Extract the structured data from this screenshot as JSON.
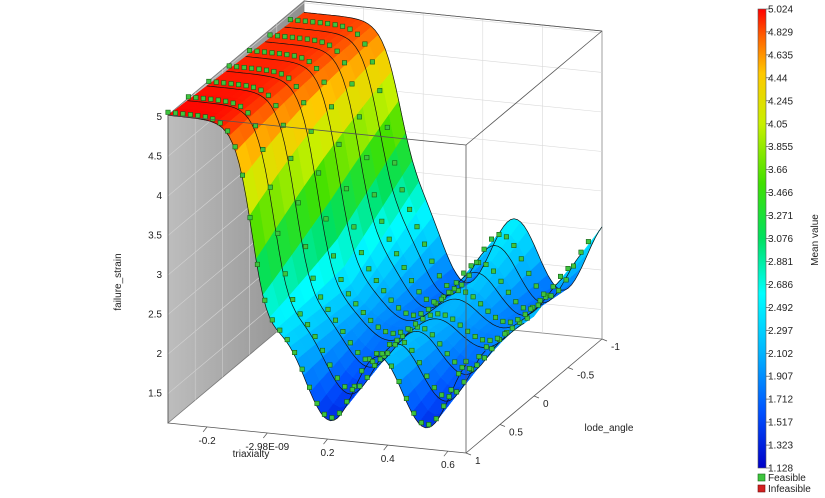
{
  "chart_data": {
    "type": "surface-3d",
    "zlabel": "failure_strain",
    "xlabel": "triaxialty",
    "ylabel": "lode_angle",
    "colorbar_label": "Mean value",
    "z_ticks": [
      "1.5",
      "2",
      "2.5",
      "3",
      "3.5",
      "4",
      "4.5",
      "5"
    ],
    "x_ticks": [
      "-0.2",
      "-2.98E-09",
      "0.2",
      "0.4",
      "0.6"
    ],
    "y_ticks": [
      "1",
      "0.5",
      "0",
      "-0.5",
      "-1"
    ],
    "colorbar_values": [
      "5.024",
      "4.829",
      "4.635",
      "4.44",
      "4.245",
      "4.05",
      "3.855",
      "3.66",
      "3.466",
      "3.271",
      "3.076",
      "2.881",
      "2.686",
      "2.492",
      "2.297",
      "2.102",
      "1.907",
      "1.712",
      "1.517",
      "1.323",
      "1.128"
    ],
    "colorbar_min": 1.128,
    "colorbar_max": 5.024,
    "xlim": [
      -0.33,
      0.66
    ],
    "ylim": [
      -1,
      1
    ],
    "zlim": [
      1.128,
      5.024
    ],
    "legend": [
      {
        "label": "Feasible",
        "color": "#3ec43e"
      },
      {
        "label": "Infeasible",
        "color": "#d42020"
      }
    ],
    "colors": {
      "surface_low": "#0000c8",
      "surface_high": "#ff0000",
      "wall": "#a9a9a9"
    }
  }
}
